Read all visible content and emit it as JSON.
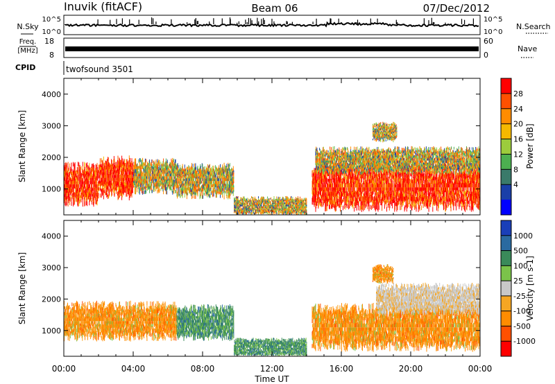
{
  "header": {
    "title": "Inuvik (fitACF)",
    "beam": "Beam 06",
    "date": "07/Dec/2012"
  },
  "strips": {
    "nsky_label": "N.Sky",
    "nsky_ticks": [
      "10^5",
      "10^0"
    ],
    "nsearch_label": "N.Search",
    "nsearch_ticks": [
      "10^5",
      "10^0"
    ],
    "freq_label": "Freq.",
    "freq_unit": "[MHz]",
    "freq_ticks": [
      "18",
      "8"
    ],
    "nave_label": "Nave",
    "nave_ticks": [
      "60",
      "0"
    ],
    "cpid_label": "CPID",
    "cpid_value": "twofsound 3501"
  },
  "colors": {
    "power": [
      "#0000ff",
      "#1a3fa8",
      "#3a7a6a",
      "#4caf50",
      "#9ccc3c",
      "#f5b800",
      "#ff8c00",
      "#ff5000",
      "#ff0000"
    ],
    "velocity_neg": [
      "#f5a623",
      "#ff8c00",
      "#ff5000",
      "#ff0000"
    ],
    "velocity_pos": [
      "#c8c8c8",
      "#7bc34a",
      "#3a8a5a",
      "#2a6aa0",
      "#1a3fb8"
    ]
  },
  "chart_data": [
    {
      "type": "heatmap",
      "name": "power-panel",
      "ylabel": "Slant Range [km]",
      "ylim": [
        180,
        4500
      ],
      "yticks": [
        "1000",
        "2000",
        "3000",
        "4000"
      ],
      "xlim": [
        0,
        24
      ],
      "colorbar": {
        "label": "Power [dB]",
        "ticks": [
          "28",
          "24",
          "20",
          "16",
          "12",
          "8",
          "4"
        ],
        "range": [
          0,
          32
        ]
      },
      "segments": [
        {
          "t0": 0.0,
          "t1": 2.0,
          "r_center": 1150,
          "r_half": 550,
          "level": "high"
        },
        {
          "t0": 2.0,
          "t1": 4.0,
          "r_center": 1350,
          "r_half": 550,
          "level": "high"
        },
        {
          "t0": 4.0,
          "t1": 6.5,
          "r_center": 1400,
          "r_half": 450,
          "level": "mid"
        },
        {
          "t0": 6.5,
          "t1": 9.8,
          "r_center": 1250,
          "r_half": 450,
          "level": "mid"
        },
        {
          "t0": 9.8,
          "t1": 14.0,
          "r_center": 450,
          "r_half": 250,
          "level": "mid"
        },
        {
          "t0": 14.3,
          "t1": 24.0,
          "r_center": 1050,
          "r_half": 600,
          "level": "high"
        },
        {
          "t0": 14.5,
          "t1": 24.0,
          "r_center": 1900,
          "r_half": 350,
          "level": "mid"
        },
        {
          "t0": 17.8,
          "t1": 19.2,
          "r_center": 2800,
          "r_half": 250,
          "level": "mid"
        }
      ]
    },
    {
      "type": "heatmap",
      "name": "velocity-panel",
      "xlabel": "Time UT",
      "ylabel": "Slant Range [km]",
      "ylim": [
        180,
        4500
      ],
      "yticks": [
        "1000",
        "2000",
        "3000",
        "4000"
      ],
      "xticks": [
        "00:00",
        "04:00",
        "08:00",
        "12:00",
        "16:00",
        "20:00",
        "00:00"
      ],
      "xlim": [
        0,
        24
      ],
      "colorbar": {
        "label": "Velocity [m s-1]",
        "ticks": [
          "1000",
          "500",
          "100",
          "25",
          "-25",
          "-100",
          "-500",
          "-1000"
        ]
      },
      "segments": [
        {
          "t0": 0.0,
          "t1": 6.5,
          "r_center": 1300,
          "r_half": 500,
          "level": "neg"
        },
        {
          "t0": 6.5,
          "t1": 9.8,
          "r_center": 1250,
          "r_half": 450,
          "level": "pos"
        },
        {
          "t0": 9.8,
          "t1": 14.0,
          "r_center": 450,
          "r_half": 250,
          "level": "pos"
        },
        {
          "t0": 14.3,
          "t1": 24.0,
          "r_center": 1100,
          "r_half": 600,
          "level": "neg"
        },
        {
          "t0": 18.0,
          "t1": 24.0,
          "r_center": 2000,
          "r_half": 400,
          "level": "zero"
        },
        {
          "t0": 17.8,
          "t1": 19.0,
          "r_center": 2800,
          "r_half": 250,
          "level": "neg"
        }
      ]
    }
  ]
}
